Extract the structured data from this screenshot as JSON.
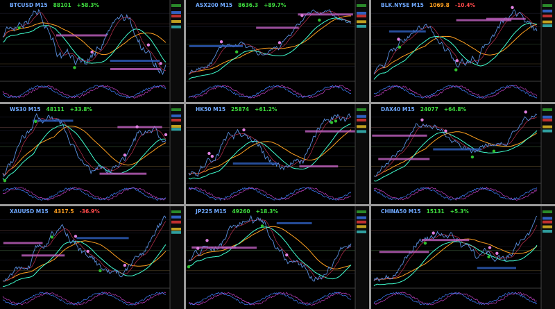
{
  "panels": [
    {
      "symbol": "BTCUSD M15",
      "price": "88101",
      "change": "+58.3%"
    },
    {
      "symbol": "ASX200 M15",
      "price": "8636.3",
      "change": "+89.7%"
    },
    {
      "symbol": "BLK.NYSE M15",
      "price": "1069.8",
      "change": "-10.4%"
    },
    {
      "symbol": "WS30 M15",
      "price": "48111",
      "change": "+33.8%"
    },
    {
      "symbol": "HK50 M15",
      "price": "25874",
      "change": "+61.2%"
    },
    {
      "symbol": "DAX40 M15",
      "price": "24077",
      "change": "+64.8%"
    },
    {
      "symbol": "XAUUSD M15",
      "price": "4317.5",
      "change": "-36.9%"
    },
    {
      "symbol": "JP225 M15",
      "price": "49260",
      "change": "+18.3%"
    },
    {
      "symbol": "CHINA50 M15",
      "price": "15131",
      "change": "+5.3%"
    }
  ]
}
